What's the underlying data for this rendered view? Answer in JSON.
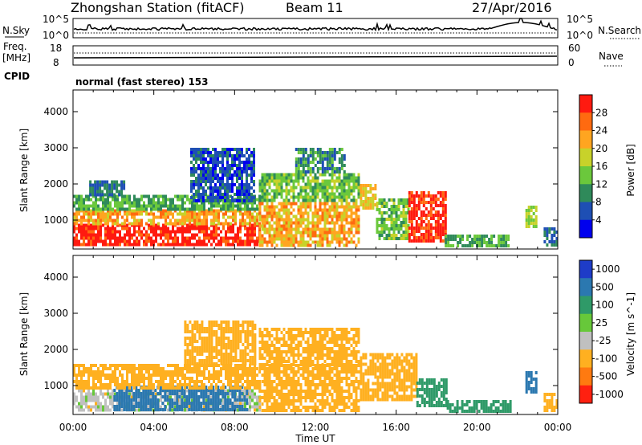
{
  "header": {
    "station_title": "Zhongshan Station (fitACF)",
    "beam": "Beam 11",
    "date": "27/Apr/2016"
  },
  "top_panels": {
    "nsky_label": "N.Sky",
    "nsearch_label": "N.Search",
    "nsky_ticks": [
      "10^5",
      "10^0"
    ],
    "nsearch_ticks": [
      "10^5",
      "10^0"
    ],
    "freq_label_line1": "Freq.",
    "freq_label_line2": "[MHz]",
    "freq_ticks": [
      "18",
      "8"
    ],
    "nave_label": "Nave",
    "nave_ticks": [
      "60",
      "0"
    ],
    "cpid_label": "CPID",
    "cpid_text": "normal (fast stereo) 153"
  },
  "chart_data": [
    {
      "type": "heatmap",
      "title": "",
      "xlabel": "",
      "ylabel": "Slant Range [km]",
      "x_ticks": [
        "00:00",
        "04:00",
        "08:00",
        "12:00",
        "16:00",
        "20:00",
        "00:00"
      ],
      "xlim": [
        0,
        24
      ],
      "ylim": [
        200,
        4600
      ],
      "y_ticks": [
        1000,
        2000,
        3000,
        4000
      ],
      "colorbar": {
        "label": "Power [dB]",
        "ticks": [
          4,
          8,
          12,
          16,
          20,
          24,
          28
        ],
        "range": [
          0,
          32
        ],
        "colors": [
          "#0000ee",
          "#1e4fb4",
          "#2f8a5a",
          "#6bc83c",
          "#c8d22a",
          "#ffa520",
          "#ff6a10",
          "#ff1a10"
        ]
      },
      "regions": [
        {
          "t0": 0.0,
          "t1": 9.2,
          "r0": 300,
          "r1": 900,
          "value": 30
        },
        {
          "t0": 0.0,
          "t1": 9.2,
          "r0": 900,
          "r1": 1300,
          "value": 22
        },
        {
          "t0": 0.0,
          "t1": 9.2,
          "r0": 1300,
          "r1": 1700,
          "value": 12
        },
        {
          "t0": 0.8,
          "t1": 2.5,
          "r0": 1700,
          "r1": 2100,
          "value": 8
        },
        {
          "t0": 5.8,
          "t1": 9.0,
          "r0": 1500,
          "r1": 3000,
          "value": 6
        },
        {
          "t0": 9.2,
          "t1": 14.2,
          "r0": 300,
          "r1": 1500,
          "value": 22
        },
        {
          "t0": 9.2,
          "t1": 14.2,
          "r0": 1500,
          "r1": 2300,
          "value": 14
        },
        {
          "t0": 11.0,
          "t1": 13.5,
          "r0": 2300,
          "r1": 3000,
          "value": 10
        },
        {
          "t0": 14.2,
          "t1": 15.0,
          "r0": 1300,
          "r1": 2000,
          "value": 20
        },
        {
          "t0": 15.0,
          "t1": 16.6,
          "r0": 500,
          "r1": 1600,
          "value": 14
        },
        {
          "t0": 16.6,
          "t1": 18.4,
          "r0": 400,
          "r1": 1800,
          "value": 30
        },
        {
          "t0": 18.4,
          "t1": 21.6,
          "r0": 300,
          "r1": 600,
          "value": 12
        },
        {
          "t0": 22.4,
          "t1": 22.9,
          "r0": 800,
          "r1": 1400,
          "value": 16
        },
        {
          "t0": 23.3,
          "t1": 24.0,
          "r0": 300,
          "r1": 800,
          "value": 8
        }
      ]
    },
    {
      "type": "heatmap",
      "title": "",
      "xlabel": "Time UT",
      "ylabel": "Slant Range [km]",
      "x_ticks": [
        "00:00",
        "04:00",
        "08:00",
        "12:00",
        "16:00",
        "20:00",
        "00:00"
      ],
      "xlim": [
        0,
        24
      ],
      "ylim": [
        200,
        4600
      ],
      "y_ticks": [
        1000,
        2000,
        3000,
        4000
      ],
      "colorbar": {
        "label": "Velocity [m s^-1]",
        "ticks": [
          "1000",
          "500",
          "100",
          "25",
          "-25",
          "-100",
          "-500",
          "-1000"
        ],
        "colors": [
          "#1e3cc8",
          "#2b78b0",
          "#2f9a68",
          "#67c83a",
          "#c0c0c0",
          "#ffb020",
          "#ff7a10",
          "#ff2010"
        ]
      },
      "regions": [
        {
          "t0": 0.0,
          "t1": 9.2,
          "r0": 300,
          "r1": 900,
          "value": -25
        },
        {
          "t0": 2.0,
          "t1": 8.6,
          "r0": 350,
          "r1": 1000,
          "value": 500
        },
        {
          "t0": 0.0,
          "t1": 9.2,
          "r0": 900,
          "r1": 1600,
          "value": -100
        },
        {
          "t0": 5.5,
          "t1": 9.0,
          "r0": 1600,
          "r1": 2800,
          "value": -100
        },
        {
          "t0": 9.2,
          "t1": 14.2,
          "r0": 300,
          "r1": 1600,
          "value": -100
        },
        {
          "t0": 9.2,
          "t1": 14.2,
          "r0": 1600,
          "r1": 2600,
          "value": -100
        },
        {
          "t0": 14.2,
          "t1": 17.0,
          "r0": 600,
          "r1": 1900,
          "value": -100
        },
        {
          "t0": 17.0,
          "t1": 18.5,
          "r0": 400,
          "r1": 1200,
          "value": 100
        },
        {
          "t0": 18.5,
          "t1": 21.6,
          "r0": 300,
          "r1": 600,
          "value": 100
        },
        {
          "t0": 22.4,
          "t1": 22.9,
          "r0": 800,
          "r1": 1400,
          "value": 500
        },
        {
          "t0": 23.3,
          "t1": 24.0,
          "r0": 300,
          "r1": 800,
          "value": -100
        }
      ]
    }
  ]
}
